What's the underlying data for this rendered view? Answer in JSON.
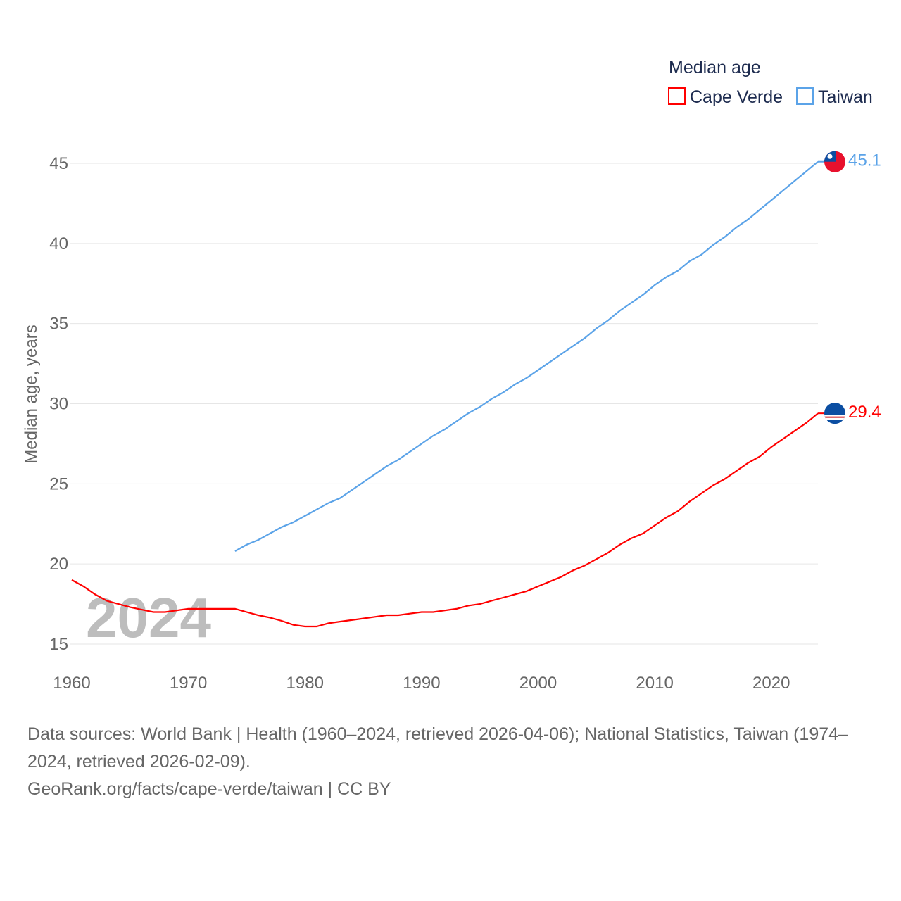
{
  "chart_data": {
    "type": "line",
    "title": "",
    "ylabel": "Median age, years",
    "xlabel": "",
    "xlim": [
      1960,
      2024
    ],
    "ylim": [
      15,
      45
    ],
    "yticks": [
      15,
      20,
      25,
      30,
      35,
      40,
      45
    ],
    "xticks": [
      1960,
      1970,
      1980,
      1990,
      2000,
      2010,
      2020
    ],
    "grid": true,
    "watermark_year": "2024",
    "legend": {
      "title": "Median age",
      "position": "top-right"
    },
    "series": [
      {
        "name": "Cape Verde",
        "color": "#ff0000",
        "end_label": "29.4",
        "flag": "cape-verde-flag",
        "start": 1960,
        "values": [
          19.0,
          18.6,
          18.1,
          17.7,
          17.5,
          17.3,
          17.15,
          17.0,
          17.0,
          17.1,
          17.2,
          17.2,
          17.2,
          17.2,
          17.2,
          17.0,
          16.8,
          16.65,
          16.45,
          16.2,
          16.1,
          16.1,
          16.3,
          16.4,
          16.5,
          16.6,
          16.7,
          16.8,
          16.8,
          16.9,
          17.0,
          17.0,
          17.1,
          17.2,
          17.4,
          17.5,
          17.7,
          17.9,
          18.1,
          18.3,
          18.6,
          18.9,
          19.2,
          19.6,
          19.9,
          20.3,
          20.7,
          21.2,
          21.6,
          21.9,
          22.4,
          22.9,
          23.3,
          23.9,
          24.4,
          24.9,
          25.3,
          25.8,
          26.3,
          26.7,
          27.3,
          27.8,
          28.3,
          28.8,
          29.4
        ]
      },
      {
        "name": "Taiwan",
        "color": "#5ba3e8",
        "end_label": "45.1",
        "flag": "taiwan-flag",
        "start": 1974,
        "values": [
          20.8,
          21.2,
          21.5,
          21.9,
          22.3,
          22.6,
          23.0,
          23.4,
          23.8,
          24.1,
          24.6,
          25.1,
          25.6,
          26.1,
          26.5,
          27.0,
          27.5,
          28.0,
          28.4,
          28.9,
          29.4,
          29.8,
          30.3,
          30.7,
          31.2,
          31.6,
          32.1,
          32.6,
          33.1,
          33.6,
          34.1,
          34.7,
          35.2,
          35.8,
          36.3,
          36.8,
          37.4,
          37.9,
          38.3,
          38.9,
          39.3,
          39.9,
          40.4,
          41.0,
          41.5,
          42.1,
          42.7,
          43.3,
          43.9,
          44.5,
          45.1
        ]
      }
    ]
  },
  "footer": {
    "sources": "Data sources: World Bank | Health (1960–2024, retrieved 2026-04-06); National Statistics, Taiwan (1974–2024, retrieved 2026-02-09).",
    "credit": "GeoRank.org/facts/cape-verde/taiwan | CC BY"
  }
}
